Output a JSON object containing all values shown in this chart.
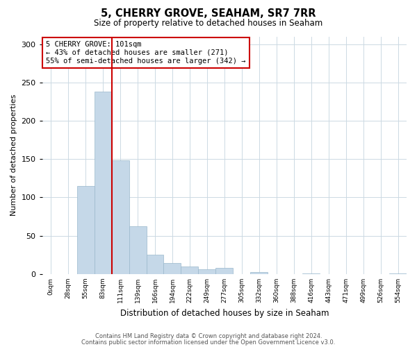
{
  "title": "5, CHERRY GROVE, SEAHAM, SR7 7RR",
  "subtitle": "Size of property relative to detached houses in Seaham",
  "xlabel": "Distribution of detached houses by size in Seaham",
  "ylabel": "Number of detached properties",
  "bin_labels": [
    "0sqm",
    "28sqm",
    "55sqm",
    "83sqm",
    "111sqm",
    "139sqm",
    "166sqm",
    "194sqm",
    "222sqm",
    "249sqm",
    "277sqm",
    "305sqm",
    "332sqm",
    "360sqm",
    "388sqm",
    "416sqm",
    "443sqm",
    "471sqm",
    "499sqm",
    "526sqm",
    "554sqm"
  ],
  "bar_heights": [
    0,
    0,
    115,
    238,
    148,
    62,
    25,
    14,
    10,
    6,
    8,
    0,
    3,
    0,
    0,
    1,
    0,
    0,
    0,
    0,
    1
  ],
  "bar_color": "#c5d8e8",
  "bar_edge_color": "#9ab8cc",
  "marker_color": "#cc0000",
  "annotation_line0": "5 CHERRY GROVE: 101sqm",
  "annotation_line1": "← 43% of detached houses are smaller (271)",
  "annotation_line2": "55% of semi-detached houses are larger (342) →",
  "annotation_box_color": "#cc0000",
  "ylim": [
    0,
    310
  ],
  "yticks": [
    0,
    50,
    100,
    150,
    200,
    250,
    300
  ],
  "footer1": "Contains HM Land Registry data © Crown copyright and database right 2024.",
  "footer2": "Contains public sector information licensed under the Open Government Licence v3.0.",
  "bg_color": "#ffffff",
  "grid_color": "#ccd9e3"
}
